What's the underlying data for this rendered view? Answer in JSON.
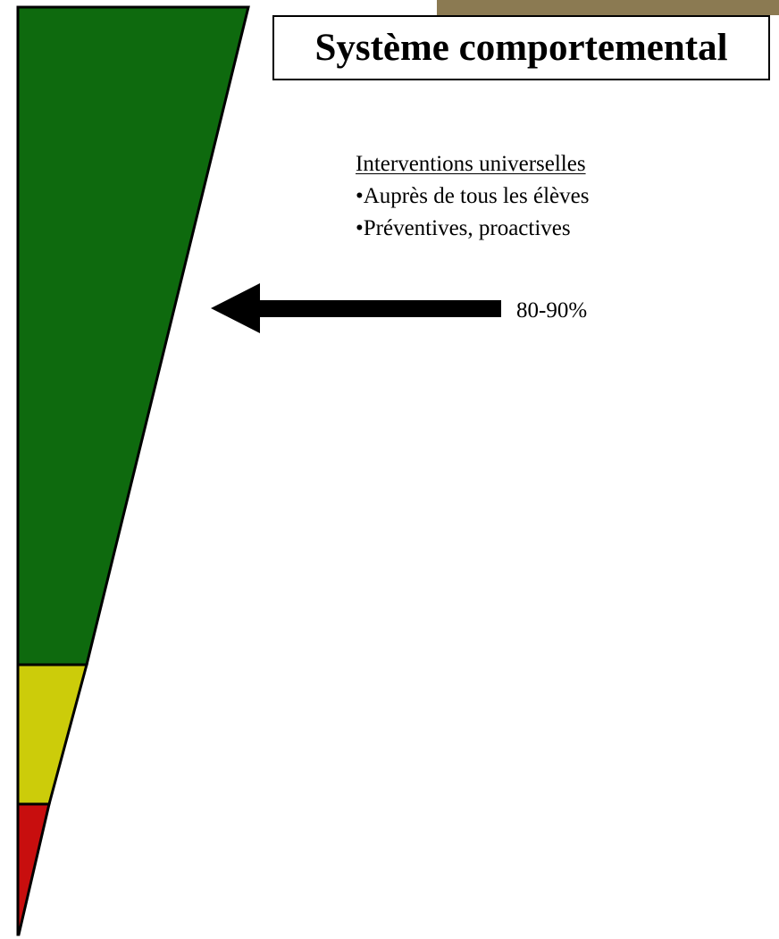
{
  "title": "Système comportemental",
  "interventions": {
    "heading": "Interventions universelles",
    "items": [
      "•Auprès de tous les élèves",
      "•Préventives, proactives"
    ]
  },
  "arrow_label": "80-90%",
  "colors": {
    "accent_bar": "#8b7a52",
    "tier_green": "#0e6a0e",
    "tier_yellow": "#cccc0a",
    "tier_red": "#c80e0e",
    "outline": "#000000"
  }
}
